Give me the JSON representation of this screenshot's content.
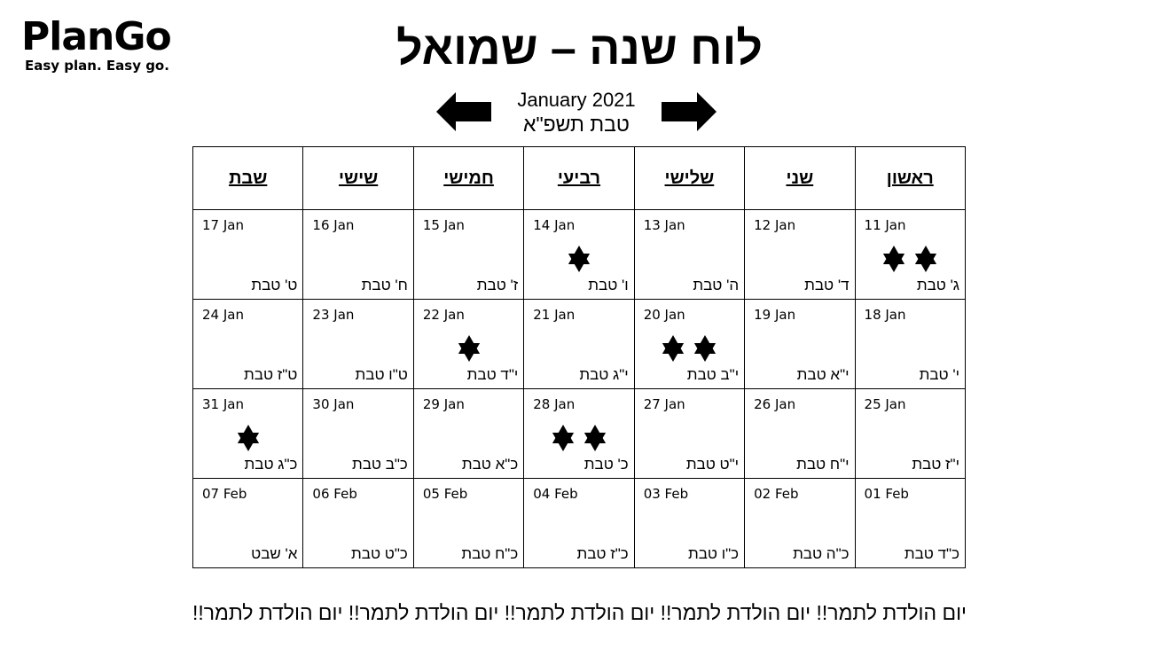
{
  "brand": {
    "name": "PlanGo",
    "tagline": "Easy plan. Easy go."
  },
  "title": "לוח שנה – שמואל",
  "navigation": {
    "gregorian_month": "January 2021",
    "hebrew_month": "טבת תשפ\"א",
    "prev_icon": "arrow-left-icon",
    "next_icon": "arrow-right-icon"
  },
  "calendar": {
    "weekdays": [
      "שבת",
      "שישי",
      "חמישי",
      "רביעי",
      "שלישי",
      "שני",
      "ראשון"
    ],
    "weeks": [
      [
        {
          "greg": "17 Jan",
          "heb": "ט' טבת",
          "stars": 0
        },
        {
          "greg": "16 Jan",
          "heb": "ח' טבת",
          "stars": 0
        },
        {
          "greg": "15 Jan",
          "heb": "ז' טבת",
          "stars": 0
        },
        {
          "greg": "14 Jan",
          "heb": "ו' טבת",
          "stars": 1
        },
        {
          "greg": "13 Jan",
          "heb": "ה' טבת",
          "stars": 0
        },
        {
          "greg": "12 Jan",
          "heb": "ד' טבת",
          "stars": 0
        },
        {
          "greg": "11 Jan",
          "heb": "ג' טבת",
          "stars": 2
        }
      ],
      [
        {
          "greg": "24 Jan",
          "heb": "ט\"ז טבת",
          "stars": 0
        },
        {
          "greg": "23 Jan",
          "heb": "ט\"ו טבת",
          "stars": 0
        },
        {
          "greg": "22 Jan",
          "heb": "י\"ד טבת",
          "stars": 1
        },
        {
          "greg": "21 Jan",
          "heb": "י\"ג טבת",
          "stars": 0
        },
        {
          "greg": "20 Jan",
          "heb": "י\"ב טבת",
          "stars": 2
        },
        {
          "greg": "19 Jan",
          "heb": "י\"א טבת",
          "stars": 0
        },
        {
          "greg": "18 Jan",
          "heb": "י' טבת",
          "stars": 0
        }
      ],
      [
        {
          "greg": "31 Jan",
          "heb": "כ\"ג טבת",
          "stars": 1
        },
        {
          "greg": "30 Jan",
          "heb": "כ\"ב טבת",
          "stars": 0
        },
        {
          "greg": "29 Jan",
          "heb": "כ\"א טבת",
          "stars": 0
        },
        {
          "greg": "28 Jan",
          "heb": "כ' טבת",
          "stars": 2
        },
        {
          "greg": "27 Jan",
          "heb": "י\"ט טבת",
          "stars": 0
        },
        {
          "greg": "26 Jan",
          "heb": "י\"ח טבת",
          "stars": 0
        },
        {
          "greg": "25 Jan",
          "heb": "י\"ז טבת",
          "stars": 0
        }
      ],
      [
        {
          "greg": "07 Feb",
          "heb": "א' שבט",
          "stars": 0
        },
        {
          "greg": "06 Feb",
          "heb": "כ\"ט טבת",
          "stars": 0
        },
        {
          "greg": "05 Feb",
          "heb": "כ\"ח טבת",
          "stars": 0
        },
        {
          "greg": "04 Feb",
          "heb": "כ\"ז טבת",
          "stars": 0
        },
        {
          "greg": "03 Feb",
          "heb": "כ\"ו טבת",
          "stars": 0
        },
        {
          "greg": "02 Feb",
          "heb": "כ\"ה טבת",
          "stars": 0
        },
        {
          "greg": "01 Feb",
          "heb": "כ\"ד טבת",
          "stars": 0
        }
      ]
    ],
    "event_icon": "star-of-david-icon"
  },
  "footer": "יום הולדת לתמר!! יום הולדת לתמר!! יום הולדת לתמר!! יום הולדת לתמר!! יום הולדת לתמר!!"
}
